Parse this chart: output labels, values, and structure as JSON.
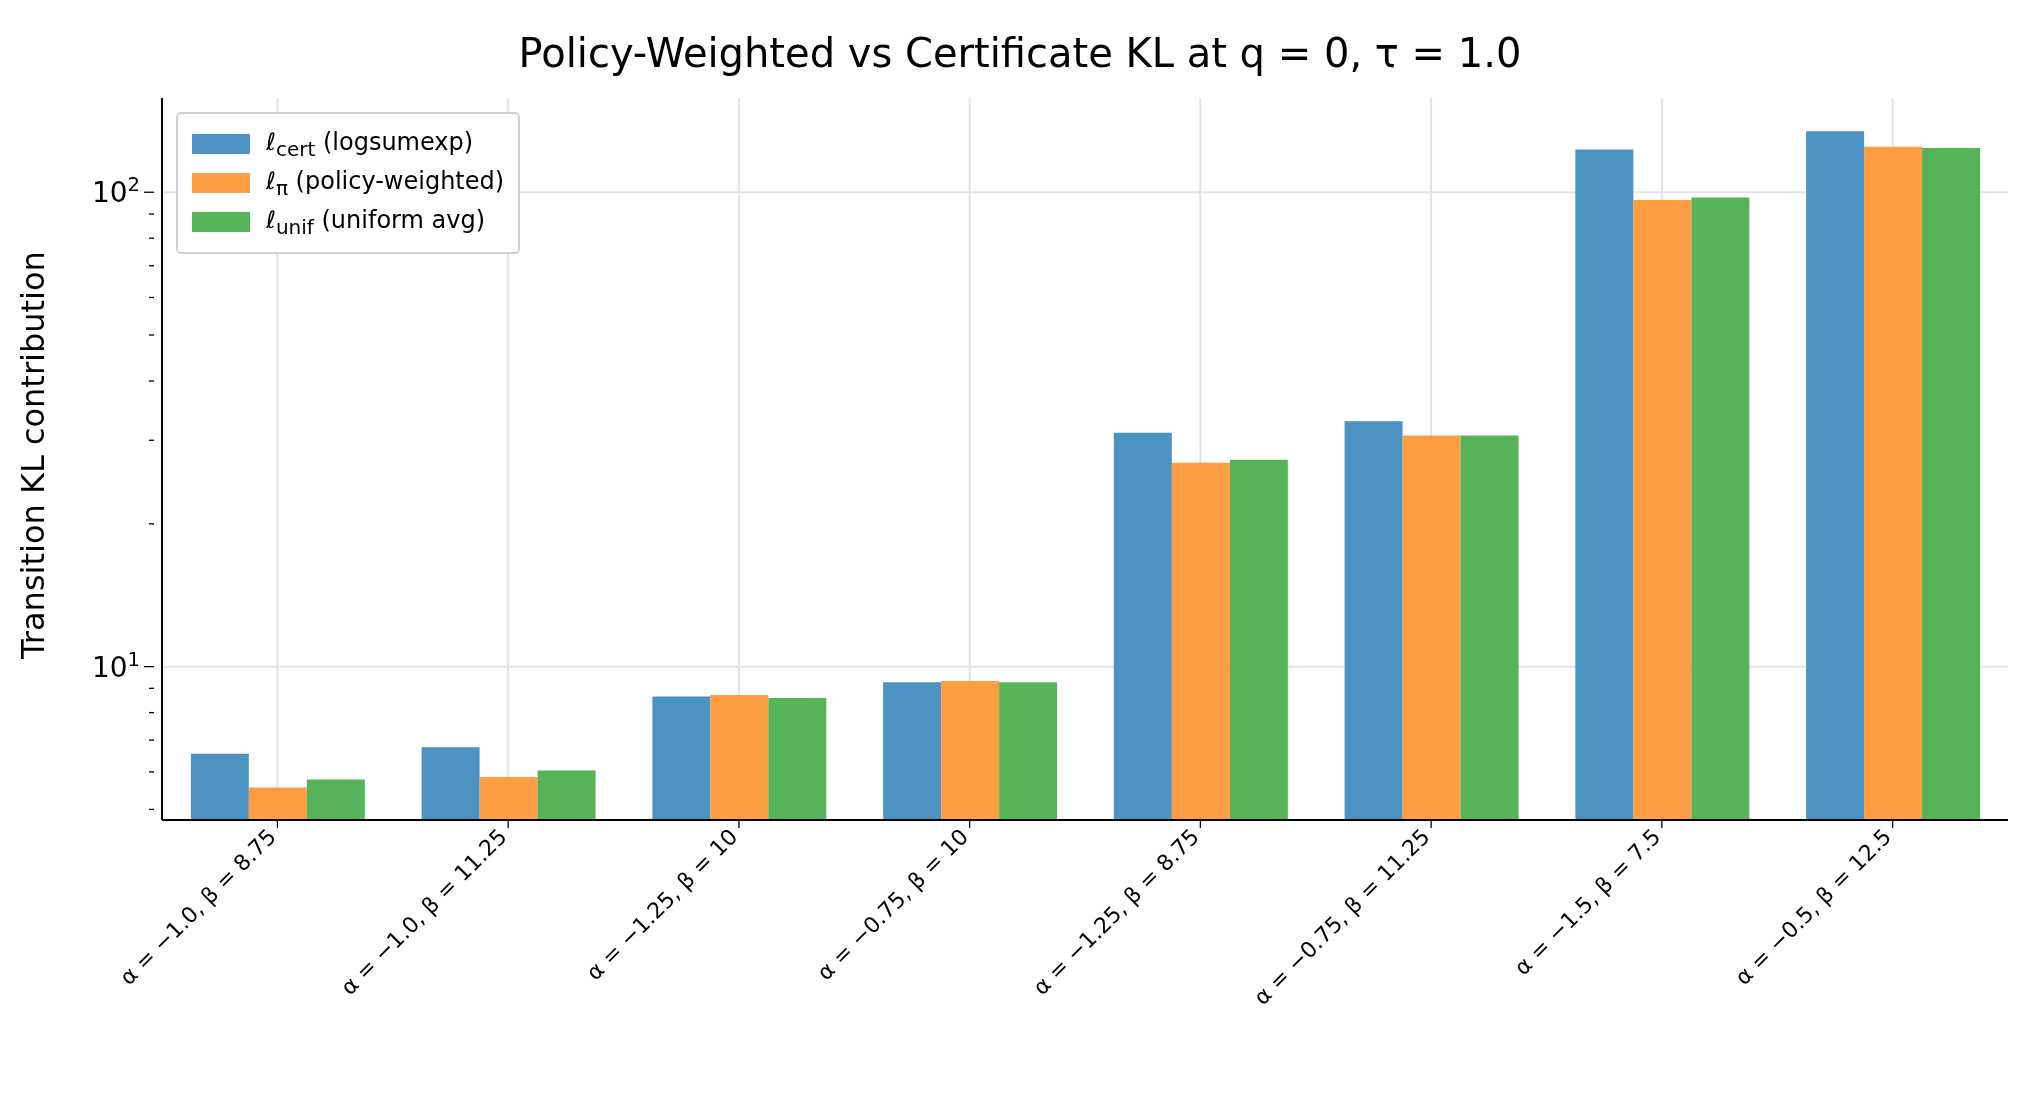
{
  "chart_data": {
    "type": "bar",
    "title": "Policy-Weighted vs Certificate KL at q = 0, τ = 1.0",
    "ylabel": "Transition KL contribution",
    "categories": [
      "α = −1.0, β = 8.75",
      "α = −1.0, β = 11.25",
      "α = −1.25, β = 10",
      "α = −0.75, β = 10",
      "α = −1.25, β = 8.75",
      "α = −0.75, β = 11.25",
      "α = −1.5, β = 7.5",
      "α = −0.5, β = 12.5"
    ],
    "series": [
      {
        "name": "ℓ$_{cert}$ (logsumexp)",
        "color": "#4c93c4",
        "values": [
          6.55,
          6.76,
          8.65,
          9.27,
          31.1,
          32.9,
          123,
          134.5
        ]
      },
      {
        "name": "ℓ$_{π}$ (policy-weighted)",
        "color": "#fd9c40",
        "values": [
          5.56,
          5.85,
          8.71,
          9.33,
          26.9,
          30.7,
          96.3,
          124.7
        ]
      },
      {
        "name": "ℓ$_{unif}$ (uniform avg)",
        "color": "#57b358",
        "values": [
          5.78,
          6.04,
          8.59,
          9.27,
          27.3,
          30.7,
          97.5,
          124
        ]
      }
    ],
    "log": true,
    "ylim": [
      4.75,
      158
    ],
    "yticks": [
      {
        "value": 5,
        "label": null
      },
      {
        "value": 6,
        "label": null
      },
      {
        "value": 7,
        "label": null
      },
      {
        "value": 8,
        "label": null
      },
      {
        "value": 9,
        "label": null
      },
      {
        "value": 10,
        "label": "10$^{1}$"
      },
      {
        "value": 20,
        "label": null
      },
      {
        "value": 30,
        "label": null
      },
      {
        "value": 40,
        "label": null
      },
      {
        "value": 50,
        "label": null
      },
      {
        "value": 60,
        "label": null
      },
      {
        "value": 70,
        "label": null
      },
      {
        "value": 80,
        "label": null
      },
      {
        "value": 90,
        "label": null
      },
      {
        "value": 100,
        "label": "10$^{2}$"
      }
    ],
    "grid": true,
    "legend": "top left"
  }
}
